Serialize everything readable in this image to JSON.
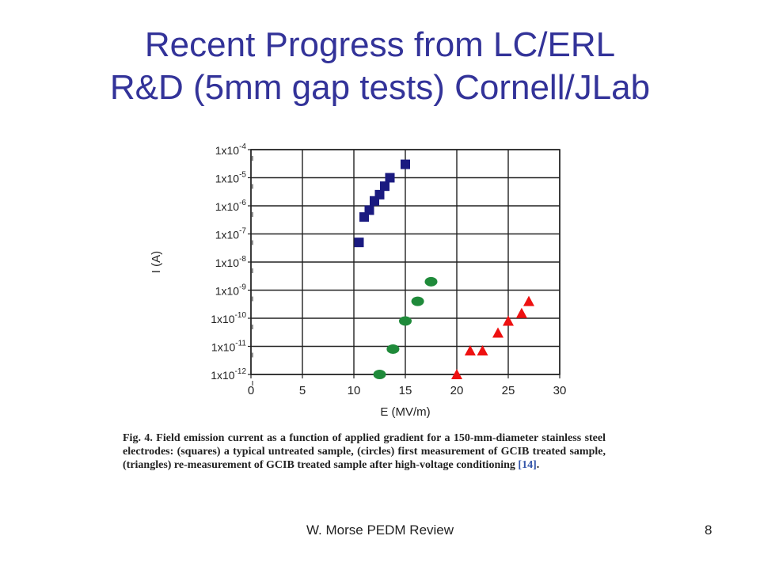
{
  "slide": {
    "title_line1": "Recent Progress from LC/ERL",
    "title_line2": "R&D (5mm gap tests) Cornell/JLab",
    "caption_main": "Fig. 4.  Field emission current as a function of applied gradient for a 150-mm-diameter stainless steel electrodes: (squares) a typical untreated sample, (circles) first measurement of GCIB treated sample, (triangles) re-measurement of GCIB treated sample after high-voltage conditioning ",
    "caption_ref": "[14]",
    "caption_end": ".",
    "footer_text": "W. Morse PEDM Review",
    "page_number": "8"
  },
  "colors": {
    "title": "#333399",
    "squares": "#1a1a80",
    "circles": "#1f8a3a",
    "triangles": "#ee1111"
  },
  "chart_data": {
    "type": "scatter",
    "xlabel": "E (MV/m)",
    "ylabel": "I (A)",
    "xlim": [
      0,
      30
    ],
    "ylim_log10": [
      -12,
      -4
    ],
    "y_scale": "log",
    "grid": true,
    "x_ticks": [
      "0",
      "5",
      "10",
      "15",
      "20",
      "25",
      "30"
    ],
    "y_tick_exponents": [
      "-12",
      "-11",
      "-10",
      "-9",
      "-8",
      "-7",
      "-6",
      "-5",
      "-4"
    ],
    "y_tick_base": "1x10",
    "series": [
      {
        "marker": "square",
        "x": [
          10.5,
          11.0,
          11.5,
          12.0,
          12.5,
          13.0,
          13.5,
          15.0
        ],
        "y": [
          5e-08,
          4e-07,
          7e-07,
          1.5e-06,
          2.5e-06,
          5e-06,
          1e-05,
          3e-05
        ]
      },
      {
        "marker": "circle",
        "x": [
          12.5,
          13.8,
          15.0,
          16.2,
          17.5
        ],
        "y": [
          1e-12,
          8e-12,
          8e-11,
          4e-10,
          2e-09
        ]
      },
      {
        "marker": "triangle",
        "x": [
          20.0,
          21.3,
          22.5,
          24.0,
          25.0,
          26.3,
          27.0
        ],
        "y": [
          1e-12,
          7e-12,
          7e-12,
          3e-11,
          8e-11,
          1.5e-10,
          4e-10
        ]
      }
    ]
  }
}
